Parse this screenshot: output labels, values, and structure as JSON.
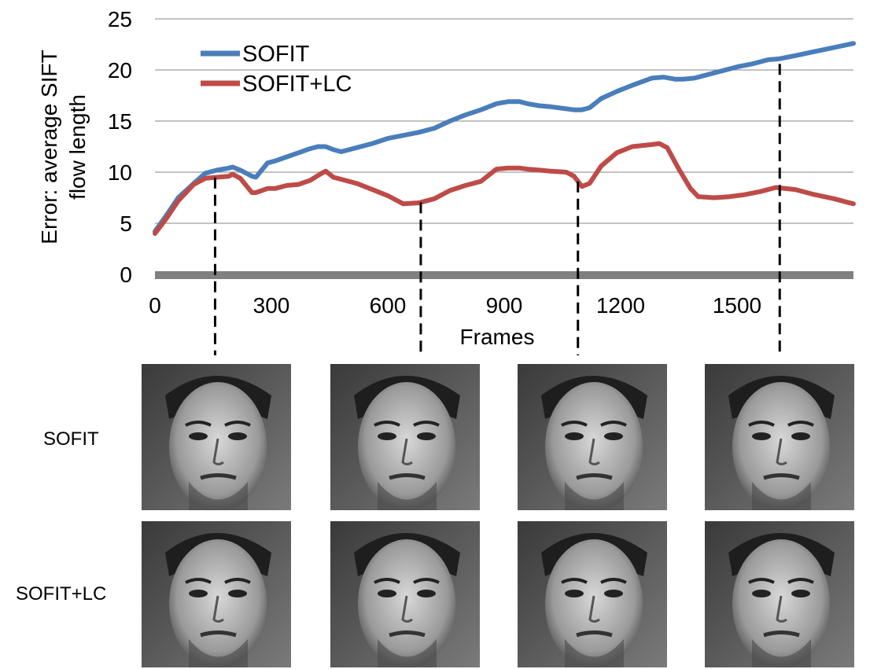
{
  "chart_data": {
    "type": "line",
    "ylabel_line1": "Error: average SIFT",
    "ylabel_line2": "flow length",
    "xlabel": "Frames",
    "xlim": [
      0,
      1800
    ],
    "ylim": [
      0,
      25
    ],
    "yticks": [
      "0",
      "5",
      "10",
      "15",
      "20",
      "25"
    ],
    "xticks": [
      "0",
      "300",
      "600",
      "900",
      "1200",
      "1500"
    ],
    "grid": true,
    "legend_position": "top-left",
    "series": [
      {
        "name": "SOFIT",
        "color": "#4a7ebb",
        "x": [
          0,
          30,
          60,
          100,
          130,
          160,
          190,
          200,
          220,
          250,
          260,
          290,
          310,
          340,
          370,
          400,
          420,
          440,
          460,
          480,
          520,
          560,
          600,
          640,
          680,
          720,
          760,
          800,
          840,
          880,
          910,
          940,
          960,
          990,
          1020,
          1060,
          1080,
          1100,
          1120,
          1150,
          1190,
          1230,
          1280,
          1310,
          1340,
          1360,
          1390,
          1420,
          1460,
          1500,
          1540,
          1580,
          1610,
          1650,
          1700,
          1750,
          1800
        ],
        "y": [
          4.2,
          5.8,
          7.5,
          8.9,
          9.9,
          10.2,
          10.4,
          10.5,
          10.2,
          9.6,
          9.5,
          10.9,
          11.1,
          11.5,
          11.9,
          12.3,
          12.5,
          12.5,
          12.2,
          12.0,
          12.4,
          12.8,
          13.3,
          13.6,
          13.9,
          14.3,
          15.0,
          15.6,
          16.1,
          16.7,
          16.9,
          16.9,
          16.7,
          16.5,
          16.4,
          16.2,
          16.1,
          16.1,
          16.3,
          17.2,
          17.9,
          18.5,
          19.2,
          19.3,
          19.1,
          19.1,
          19.2,
          19.5,
          19.9,
          20.3,
          20.6,
          21.0,
          21.1,
          21.4,
          21.8,
          22.2,
          22.6
        ]
      },
      {
        "name": "SOFIT+LC",
        "color": "#be4b48",
        "x": [
          0,
          30,
          60,
          100,
          130,
          160,
          190,
          200,
          220,
          250,
          260,
          290,
          310,
          340,
          370,
          400,
          430,
          440,
          460,
          490,
          520,
          560,
          600,
          640,
          680,
          720,
          760,
          800,
          840,
          880,
          910,
          940,
          960,
          990,
          1020,
          1060,
          1080,
          1100,
          1120,
          1150,
          1190,
          1230,
          1280,
          1300,
          1320,
          1350,
          1380,
          1400,
          1440,
          1480,
          1520,
          1560,
          1600,
          1650,
          1700,
          1750,
          1800
        ],
        "y": [
          4.0,
          5.5,
          7.2,
          8.8,
          9.4,
          9.5,
          9.6,
          9.8,
          9.4,
          8.0,
          8.0,
          8.4,
          8.4,
          8.7,
          8.8,
          9.2,
          9.9,
          10.1,
          9.5,
          9.2,
          8.9,
          8.3,
          7.7,
          6.9,
          7.0,
          7.4,
          8.2,
          8.7,
          9.1,
          10.3,
          10.4,
          10.4,
          10.3,
          10.2,
          10.1,
          10.0,
          9.6,
          8.6,
          8.9,
          10.6,
          11.9,
          12.5,
          12.7,
          12.8,
          12.4,
          10.3,
          8.4,
          7.6,
          7.5,
          7.6,
          7.8,
          8.1,
          8.5,
          8.3,
          7.8,
          7.4,
          6.9
        ]
      }
    ],
    "markers_x": [
      155,
      685,
      1090,
      1610
    ]
  },
  "rows": {
    "row1_label": "SOFIT",
    "row2_label": "SOFIT+LC"
  }
}
